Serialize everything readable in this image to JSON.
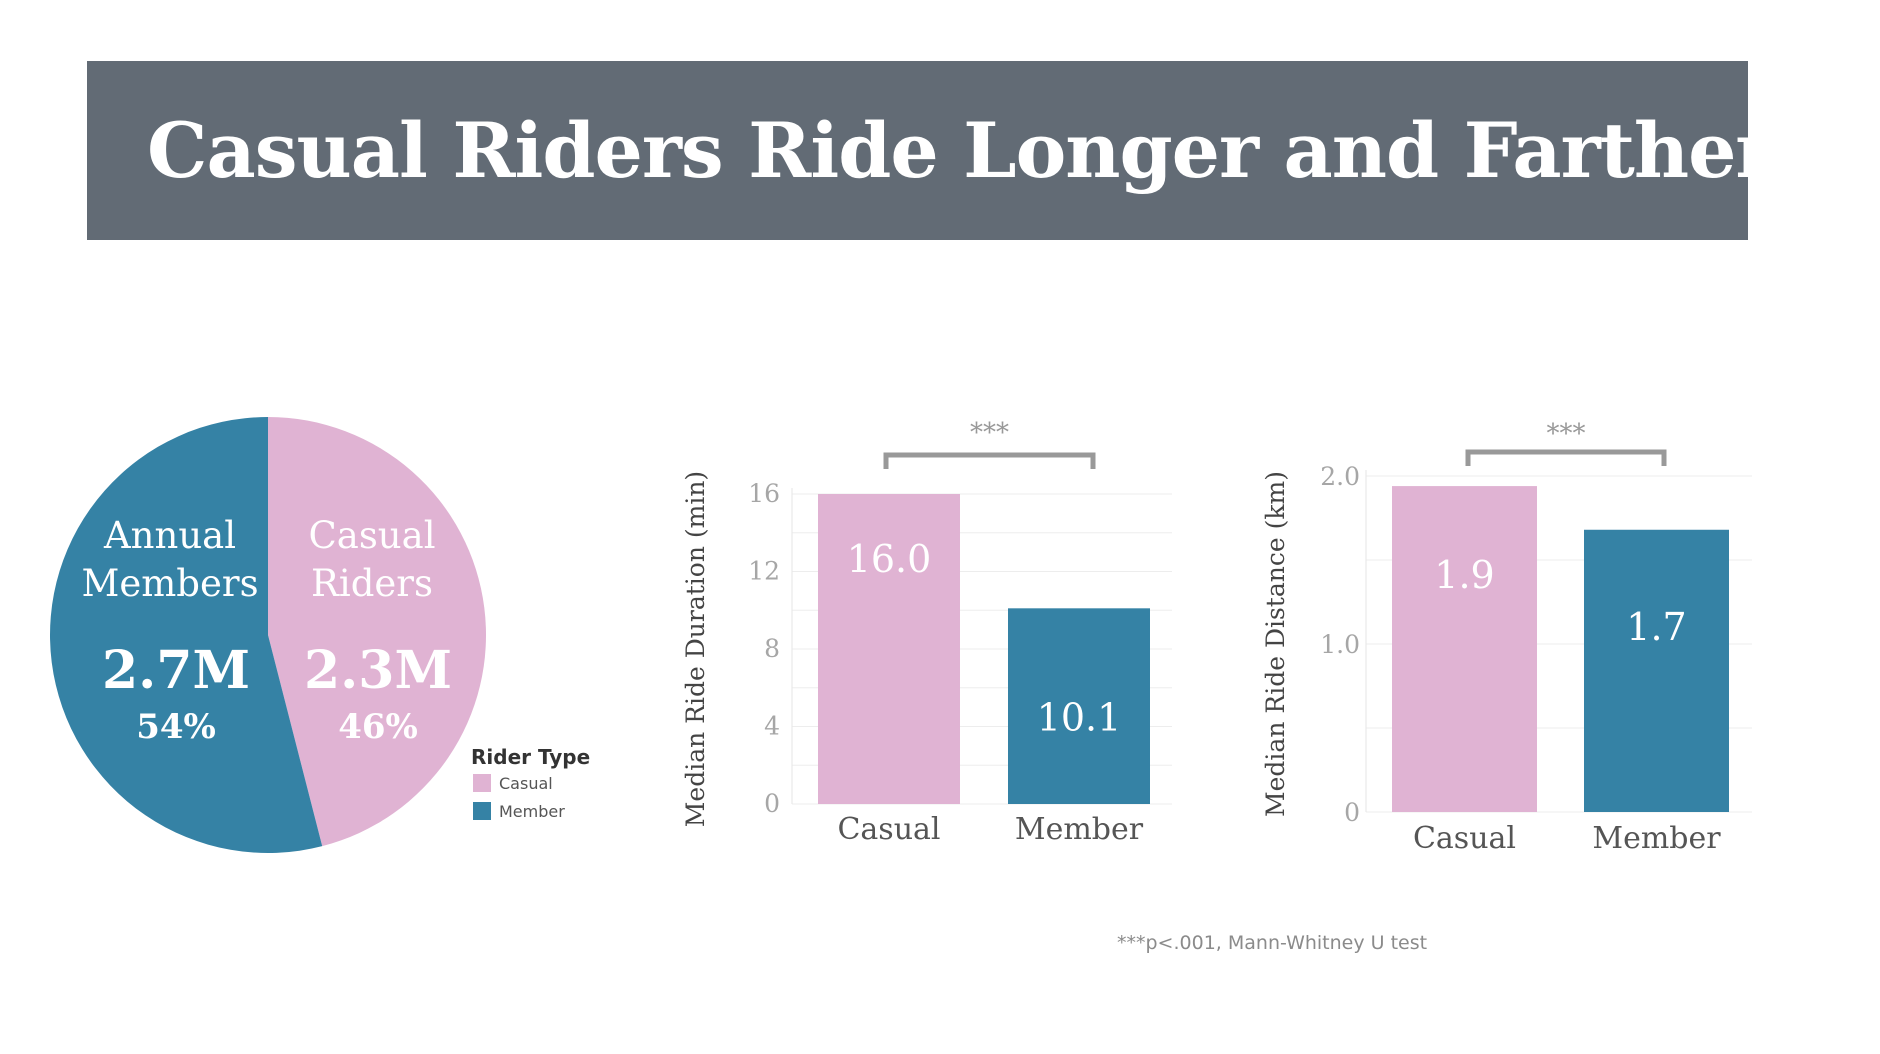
{
  "title": "Casual Riders Ride Longer and Farther",
  "footnote": "***p<.001, Mann-Whitney U test",
  "colors": {
    "casual": "#e0b3d3",
    "member": "#3582a5",
    "banner": "#626b75",
    "bracket": "#999999"
  },
  "chart_data": [
    {
      "type": "pie",
      "legend": {
        "title": "Rider Type",
        "entries": [
          "Casual",
          "Member"
        ],
        "placement": "bottom-right"
      },
      "slices": [
        {
          "key": "casual",
          "label_lines": [
            "Casual",
            "Riders"
          ],
          "value_text": "2.3M",
          "pct_text": "46%",
          "value": 2.3,
          "percent": 46
        },
        {
          "key": "member",
          "label_lines": [
            "Annual",
            "Members"
          ],
          "value_text": "2.7M",
          "pct_text": "54%",
          "value": 2.7,
          "percent": 54
        }
      ]
    },
    {
      "type": "bar",
      "ylabel": "Median Ride Duration (min)",
      "categories": [
        "Casual",
        "Member"
      ],
      "values": [
        16.0,
        10.1
      ],
      "value_labels": [
        "16.0",
        "10.1"
      ],
      "ylim": [
        0,
        16
      ],
      "yticks": [
        0,
        4,
        8,
        12,
        16
      ],
      "ytick_labels": [
        "0",
        "4",
        "8",
        "12",
        "16"
      ],
      "significance": "***"
    },
    {
      "type": "bar",
      "ylabel": "Median Ride Distance (km)",
      "categories": [
        "Casual",
        "Member"
      ],
      "values": [
        1.94,
        1.68
      ],
      "value_labels": [
        "1.9",
        "1.7"
      ],
      "ylim": [
        0,
        2.0
      ],
      "yticks": [
        0,
        1.0,
        2.0
      ],
      "ytick_labels": [
        "0",
        "1.0",
        "2.0"
      ],
      "significance": "***"
    }
  ]
}
